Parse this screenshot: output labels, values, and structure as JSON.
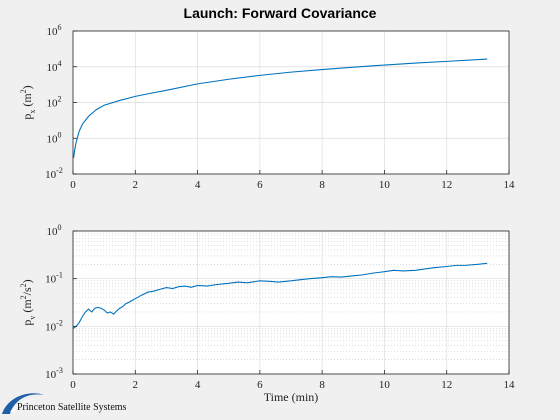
{
  "figure": {
    "title": "Launch: Forward Covariance",
    "logo": {
      "text": "Princeton Satellite Systems",
      "color": "#1f5fa8"
    }
  },
  "chart_data": [
    {
      "type": "line",
      "scale_y": "log",
      "ylabel": {
        "base": "p",
        "sub": "x",
        "unit_pre": "(m",
        "unit_sup": "2",
        "unit_post": ")"
      },
      "xlabel": "",
      "xlim": [
        0,
        14
      ],
      "ylim": [
        0.01,
        1000000
      ],
      "x_ticks": [
        0,
        2,
        4,
        6,
        8,
        10,
        12,
        14
      ],
      "y_ticks": [
        {
          "value": 0.01,
          "base": "10",
          "exp": "-2"
        },
        {
          "value": 1,
          "base": "10",
          "exp": "0"
        },
        {
          "value": 100,
          "base": "10",
          "exp": "2"
        },
        {
          "value": 10000,
          "base": "10",
          "exp": "4"
        },
        {
          "value": 1000000,
          "base": "10",
          "exp": "6"
        }
      ],
      "grid": true,
      "minor_grid": false,
      "series": [
        {
          "color": "#0072bd",
          "x": [
            0.02,
            0.05,
            0.1,
            0.2,
            0.3,
            0.5,
            0.75,
            1,
            1.5,
            2,
            2.5,
            3,
            4,
            5,
            6,
            7,
            8,
            9,
            10,
            11,
            12,
            13.3
          ],
          "y": [
            0.08,
            0.2,
            0.6,
            2.5,
            6,
            17,
            40,
            70,
            130,
            220,
            330,
            480,
            1100,
            2000,
            3300,
            5000,
            7000,
            9500,
            12500,
            16000,
            20000,
            27000
          ]
        }
      ]
    },
    {
      "type": "line",
      "scale_y": "log",
      "ylabel": {
        "base": "p",
        "sub": "v",
        "unit_pre": "(m",
        "unit_sup": "2",
        "unit_post": "/s",
        "unit_sup2": "2",
        "unit_end": ")"
      },
      "xlabel": "Time (min)",
      "xlim": [
        0,
        14
      ],
      "ylim": [
        0.001,
        1
      ],
      "x_ticks": [
        0,
        2,
        4,
        6,
        8,
        10,
        12,
        14
      ],
      "y_ticks": [
        {
          "value": 0.001,
          "base": "10",
          "exp": "-3"
        },
        {
          "value": 0.01,
          "base": "10",
          "exp": "-2"
        },
        {
          "value": 0.1,
          "base": "10",
          "exp": "-1"
        },
        {
          "value": 1,
          "base": "10",
          "exp": "0"
        }
      ],
      "grid": true,
      "minor_grid": true,
      "series": [
        {
          "color": "#0072bd",
          "x": [
            0,
            0.1,
            0.2,
            0.3,
            0.4,
            0.5,
            0.6,
            0.7,
            0.8,
            0.9,
            1,
            1.1,
            1.2,
            1.3,
            1.4,
            1.5,
            1.6,
            1.7,
            1.8,
            1.9,
            2,
            2.2,
            2.4,
            2.6,
            2.8,
            3,
            3.2,
            3.4,
            3.6,
            3.8,
            4,
            4.3,
            4.6,
            5,
            5.3,
            5.6,
            6,
            6.3,
            6.6,
            7,
            7.3,
            7.6,
            8,
            8.3,
            8.6,
            9,
            9.3,
            9.6,
            10,
            10.3,
            10.6,
            11,
            11.3,
            11.6,
            12,
            12.3,
            12.6,
            13,
            13.3
          ],
          "y": [
            0.009,
            0.01,
            0.012,
            0.016,
            0.02,
            0.023,
            0.02,
            0.024,
            0.025,
            0.024,
            0.022,
            0.019,
            0.02,
            0.018,
            0.021,
            0.024,
            0.026,
            0.03,
            0.032,
            0.035,
            0.038,
            0.045,
            0.052,
            0.055,
            0.06,
            0.065,
            0.062,
            0.068,
            0.07,
            0.066,
            0.072,
            0.07,
            0.075,
            0.08,
            0.085,
            0.082,
            0.09,
            0.088,
            0.085,
            0.09,
            0.095,
            0.1,
            0.105,
            0.11,
            0.108,
            0.115,
            0.12,
            0.13,
            0.14,
            0.15,
            0.145,
            0.15,
            0.16,
            0.17,
            0.18,
            0.19,
            0.19,
            0.2,
            0.21
          ]
        }
      ]
    }
  ]
}
